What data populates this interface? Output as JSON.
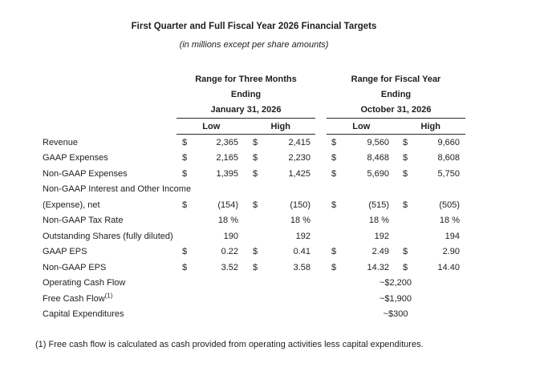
{
  "title": "First Quarter and Full Fiscal Year 2026 Financial Targets",
  "subtitle": "(in millions except per share amounts)",
  "table": {
    "groups": [
      {
        "line1": "Range for Three Months",
        "line2": "Ending",
        "line3": "January 31, 2026",
        "low": "Low",
        "high": "High"
      },
      {
        "line1": "Range for Fiscal Year",
        "line2": "Ending",
        "line3": "October 31, 2026",
        "low": "Low",
        "high": "High"
      }
    ],
    "rows": [
      {
        "label": "Revenue",
        "cells": [
          "$",
          "2,365",
          "$",
          "2,415",
          "$",
          "9,560",
          "$",
          "9,660"
        ]
      },
      {
        "label": "GAAP Expenses",
        "cells": [
          "$",
          "2,165",
          "$",
          "2,230",
          "$",
          "8,468",
          "$",
          "8,608"
        ]
      },
      {
        "label": "Non-GAAP Expenses",
        "cells": [
          "$",
          "1,395",
          "$",
          "1,425",
          "$",
          "5,690",
          "$",
          "5,750"
        ]
      },
      {
        "label": "Non-GAAP Interest and Other Income",
        "cells": [
          "",
          "",
          "",
          "",
          "",
          "",
          "",
          ""
        ]
      },
      {
        "label": "(Expense), net",
        "cells": [
          "$",
          "(154)",
          "$",
          "(150)",
          "$",
          "(515)",
          "$",
          "(505)"
        ]
      },
      {
        "label": "Non-GAAP Tax Rate",
        "cells": [
          "",
          "18 %",
          "",
          "18 %",
          "",
          "18 %",
          "",
          "18 %"
        ]
      },
      {
        "label": "Outstanding Shares (fully diluted)",
        "cells": [
          "",
          "190",
          "",
          "192",
          "",
          "192",
          "",
          "194"
        ]
      },
      {
        "label": "GAAP EPS",
        "cells": [
          "$",
          "0.22",
          "$",
          "0.41",
          "$",
          "2.49",
          "$",
          "2.90"
        ]
      },
      {
        "label": "Non-GAAP EPS",
        "cells": [
          "$",
          "3.52",
          "$",
          "3.58",
          "$",
          "14.32",
          "$",
          "14.40"
        ]
      },
      {
        "label": "Operating Cash Flow",
        "fy_value": "~$2,200"
      },
      {
        "label": "Free Cash Flow",
        "label_sup": "(1)",
        "fy_value": "~$1,900"
      },
      {
        "label": "Capital Expenditures",
        "fy_value": "~$300"
      }
    ]
  },
  "footnote": "(1) Free cash flow is calculated as cash provided from operating activities less capital expenditures."
}
